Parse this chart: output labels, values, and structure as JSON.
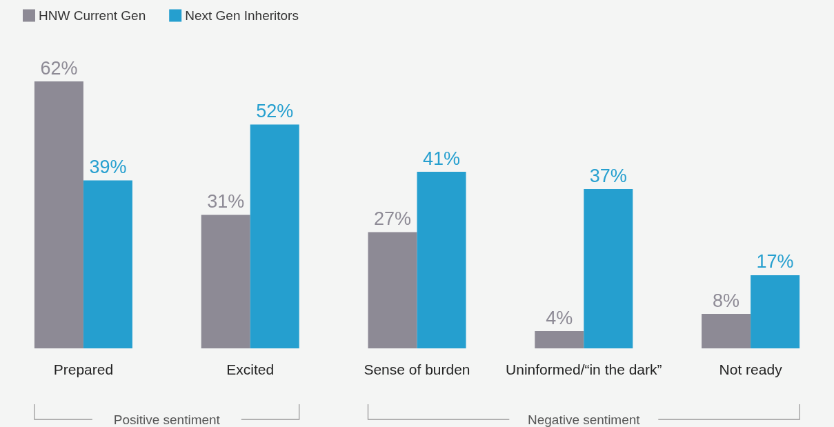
{
  "chart_data": {
    "type": "bar",
    "categories": [
      "Prepared",
      "Excited",
      "Sense of burden",
      "Uninformed/“in the dark”",
      "Not ready"
    ],
    "series": [
      {
        "name": "HNW Current Gen",
        "color": "#8d8a95",
        "values": [
          62,
          31,
          27,
          4,
          8
        ],
        "value_labels": [
          "62%",
          "31%",
          "27%",
          "4%",
          "8%"
        ]
      },
      {
        "name": "Next Gen Inheritors",
        "color": "#259fcf",
        "values": [
          39,
          52,
          41,
          37,
          17
        ],
        "value_labels": [
          "39%",
          "52%",
          "41%",
          "37%",
          "17%"
        ]
      }
    ],
    "legend": "top left",
    "annotations": [
      "Positive sentiment",
      "Negative sentiment"
    ]
  }
}
